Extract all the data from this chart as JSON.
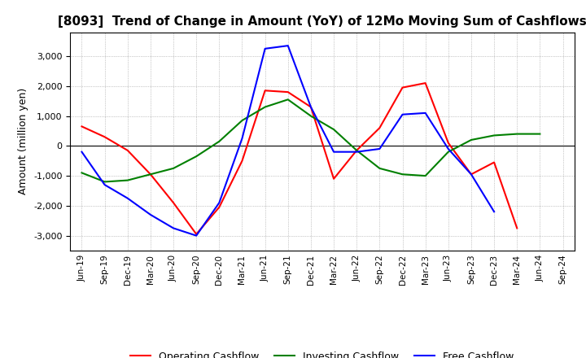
{
  "title": "[8093]  Trend of Change in Amount (YoY) of 12Mo Moving Sum of Cashflows",
  "ylabel": "Amount (million yen)",
  "x_labels": [
    "Jun-19",
    "Sep-19",
    "Dec-19",
    "Mar-20",
    "Jun-20",
    "Sep-20",
    "Dec-20",
    "Mar-21",
    "Jun-21",
    "Sep-21",
    "Dec-21",
    "Mar-22",
    "Jun-22",
    "Sep-22",
    "Dec-22",
    "Mar-23",
    "Jun-23",
    "Sep-23",
    "Dec-23",
    "Mar-24",
    "Jun-24",
    "Sep-24"
  ],
  "operating": [
    650,
    300,
    -150,
    -950,
    -1900,
    -2950,
    -2050,
    -500,
    1850,
    1800,
    1300,
    -1100,
    -150,
    600,
    1950,
    2100,
    100,
    -950,
    -550,
    -2750,
    null,
    null
  ],
  "investing": [
    -900,
    -1200,
    -1150,
    -950,
    -750,
    -350,
    150,
    850,
    1300,
    1550,
    1000,
    550,
    -150,
    -750,
    -950,
    -1000,
    -200,
    200,
    350,
    400,
    400,
    null
  ],
  "free": [
    -200,
    -1300,
    -1750,
    -2300,
    -2750,
    -3000,
    -1900,
    250,
    3250,
    3350,
    1300,
    -200,
    -200,
    -100,
    1050,
    1100,
    -100,
    -950,
    -2200,
    null,
    null,
    null
  ],
  "operating_color": "#ff0000",
  "investing_color": "#008000",
  "free_color": "#0000ff",
  "ylim": [
    -3500,
    3800
  ],
  "yticks": [
    -3000,
    -2000,
    -1000,
    0,
    1000,
    2000,
    3000
  ],
  "background_color": "#ffffff",
  "grid_color": "#999999"
}
